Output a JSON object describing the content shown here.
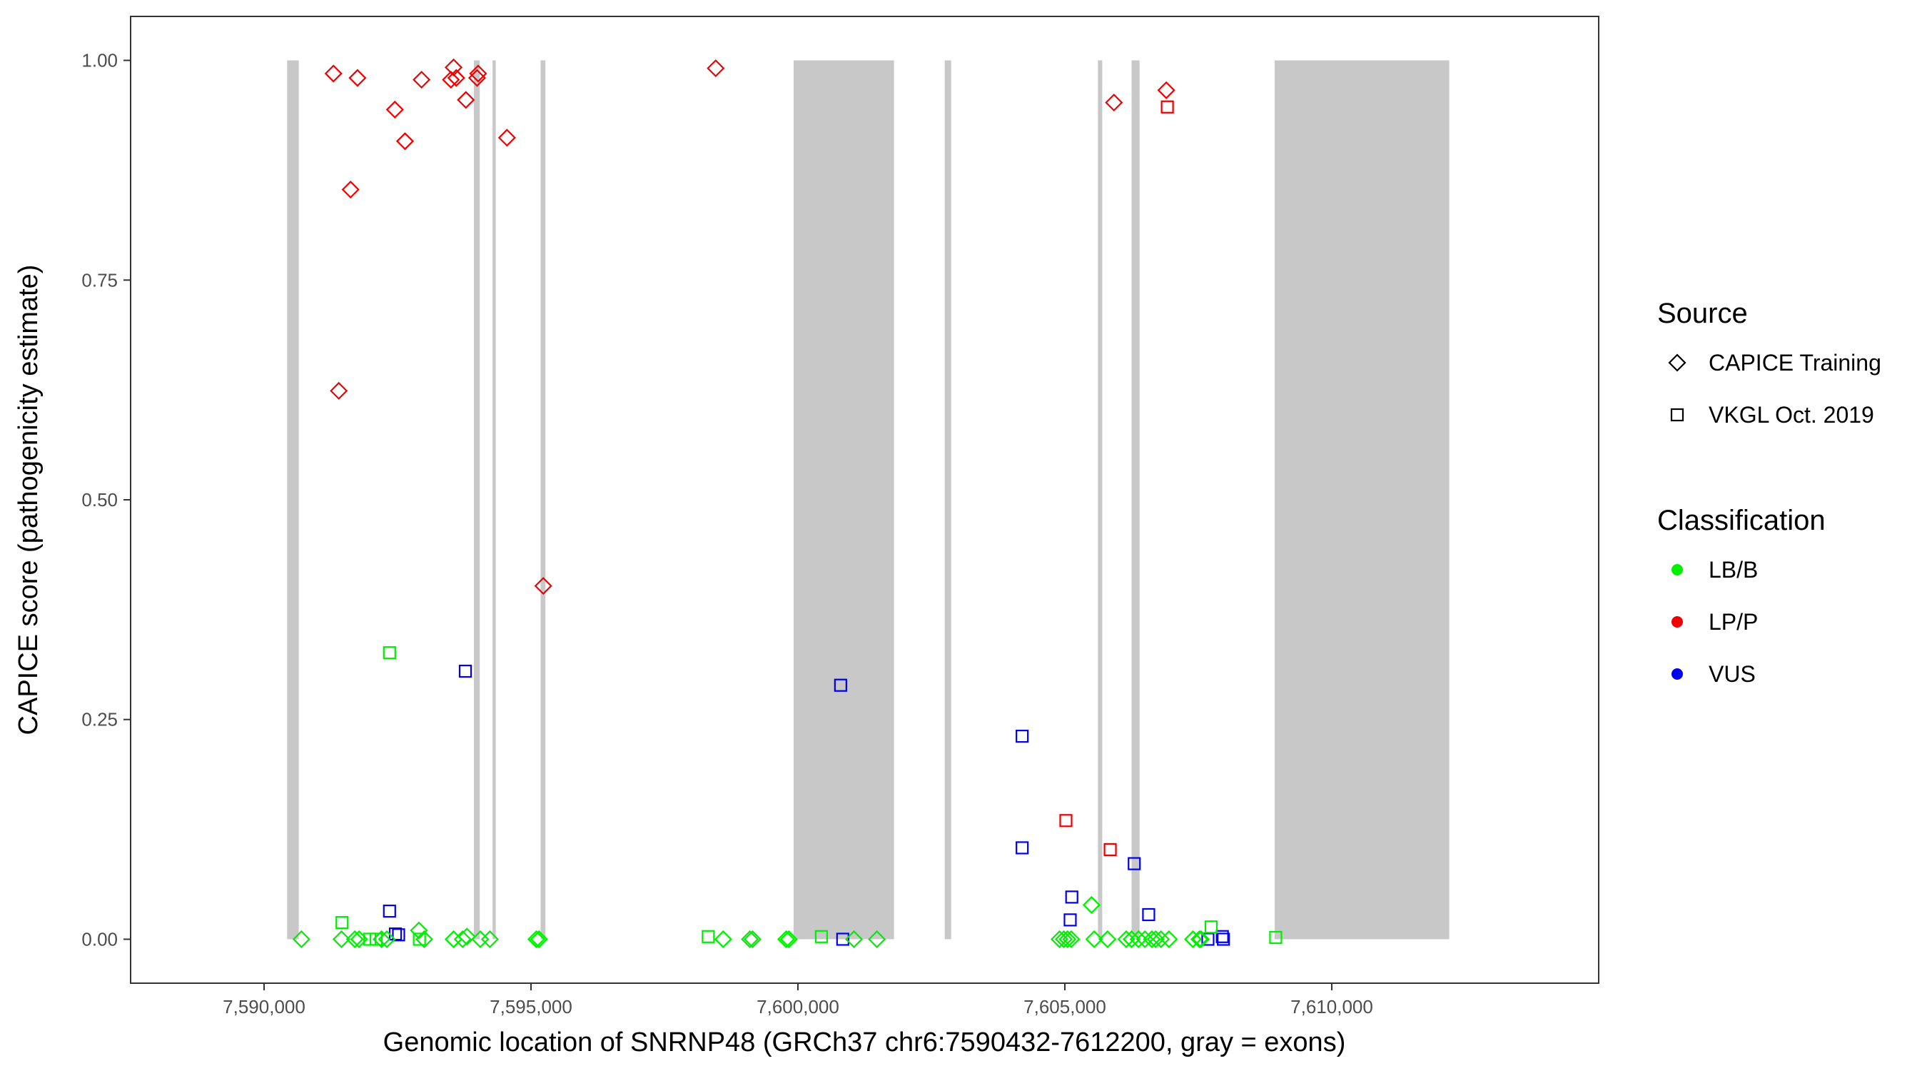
{
  "chart_data": {
    "type": "scatter",
    "title": "",
    "xlabel": "Genomic location of SNRNP48 (GRCh37 chr6:7590432-7612200, gray = exons)",
    "ylabel": "CAPICE score (pathogenicity estimate)",
    "xlim": [
      7587500,
      7615000
    ],
    "ylim": [
      -0.05,
      1.05
    ],
    "x_ticks": [
      7590000,
      7595000,
      7600000,
      7605000,
      7610000
    ],
    "x_tick_labels": [
      "7,590,000",
      "7,595,000",
      "7,600,000",
      "7,605,000",
      "7,610,000"
    ],
    "y_ticks": [
      0,
      0.25,
      0.5,
      0.75,
      1.0
    ],
    "y_tick_labels": [
      "0.00",
      "0.25",
      "0.50",
      "0.75",
      "1.00"
    ],
    "grid": false,
    "legend_position": "right",
    "exons": [
      [
        7590432,
        7590650
      ],
      [
        7593930,
        7594040
      ],
      [
        7594280,
        7594340
      ],
      [
        7595180,
        7595270
      ],
      [
        7599920,
        7601800
      ],
      [
        7602750,
        7602870
      ],
      [
        7605620,
        7605700
      ],
      [
        7606250,
        7606400
      ],
      [
        7608930,
        7612200
      ]
    ],
    "exon_color": "#c8c8c8",
    "legend": {
      "source_title": "Source",
      "source_items": [
        {
          "label": "CAPICE Training",
          "shape": "diamond"
        },
        {
          "label": "VKGL Oct. 2019",
          "shape": "square"
        }
      ],
      "class_title": "Classification",
      "class_items": [
        {
          "label": "LB/B",
          "color": "#00ee00"
        },
        {
          "label": "LP/P",
          "color": "#ee0000"
        },
        {
          "label": "VUS",
          "color": "#0000ee"
        }
      ]
    },
    "series": [
      {
        "source": "CAPICE Training",
        "classification": "LP/P",
        "points": [
          [
            7591300,
            0.985
          ],
          [
            7591750,
            0.98
          ],
          [
            7591620,
            0.853
          ],
          [
            7591400,
            0.624
          ],
          [
            7592450,
            0.944
          ],
          [
            7592640,
            0.908
          ],
          [
            7592950,
            0.978
          ],
          [
            7593550,
            0.992
          ],
          [
            7593500,
            0.978
          ],
          [
            7593600,
            0.98
          ],
          [
            7593780,
            0.955
          ],
          [
            7593990,
            0.98
          ],
          [
            7594010,
            0.985
          ],
          [
            7594550,
            0.912
          ],
          [
            7595230,
            0.402
          ],
          [
            7598460,
            0.991
          ],
          [
            7605920,
            0.952
          ],
          [
            7606900,
            0.966
          ]
        ]
      },
      {
        "source": "VKGL Oct. 2019",
        "classification": "LP/P",
        "points": [
          [
            7606920,
            0.947
          ],
          [
            7605020,
            0.135
          ],
          [
            7605850,
            0.102
          ]
        ]
      },
      {
        "source": "VKGL Oct. 2019",
        "classification": "VUS",
        "points": [
          [
            7593770,
            0.305
          ],
          [
            7600800,
            0.289
          ],
          [
            7604200,
            0.231
          ],
          [
            7604200,
            0.104
          ],
          [
            7606300,
            0.086
          ],
          [
            7605130,
            0.048
          ],
          [
            7606570,
            0.028
          ],
          [
            7605100,
            0.022
          ],
          [
            7592350,
            0.032
          ],
          [
            7592520,
            0.005
          ],
          [
            7592460,
            0.006
          ],
          [
            7600840,
            0.0
          ],
          [
            7607680,
            0.0
          ],
          [
            7607950,
            0.003
          ],
          [
            7607970,
            0.0
          ]
        ]
      },
      {
        "source": "VKGL Oct. 2019",
        "classification": "LB/B",
        "points": [
          [
            7592350,
            0.326
          ],
          [
            7591460,
            0.019
          ],
          [
            7592910,
            0.0
          ],
          [
            7607740,
            0.014
          ],
          [
            7598320,
            0.003
          ],
          [
            7600440,
            0.003
          ],
          [
            7608950,
            0.002
          ],
          [
            7592100,
            0.0
          ],
          [
            7591980,
            0.0
          ]
        ]
      },
      {
        "source": "CAPICE Training",
        "classification": "LB/B",
        "points": [
          [
            7590700,
            0.0
          ],
          [
            7591450,
            0.0
          ],
          [
            7591700,
            0.0
          ],
          [
            7591780,
            0.0
          ],
          [
            7592200,
            0.0
          ],
          [
            7592300,
            0.0
          ],
          [
            7592900,
            0.01
          ],
          [
            7593000,
            0.0
          ],
          [
            7593550,
            0.0
          ],
          [
            7593720,
            0.0
          ],
          [
            7593800,
            0.003
          ],
          [
            7594050,
            0.0
          ],
          [
            7594230,
            0.0
          ],
          [
            7595100,
            0.0
          ],
          [
            7595150,
            0.0
          ],
          [
            7598600,
            0.0
          ],
          [
            7599100,
            0.0
          ],
          [
            7599150,
            0.0
          ],
          [
            7599780,
            0.0
          ],
          [
            7599830,
            0.0
          ],
          [
            7601050,
            0.0
          ],
          [
            7601480,
            0.0
          ],
          [
            7604900,
            0.0
          ],
          [
            7604980,
            0.0
          ],
          [
            7605050,
            0.0
          ],
          [
            7605120,
            0.0
          ],
          [
            7605550,
            0.0
          ],
          [
            7605800,
            0.0
          ],
          [
            7605500,
            0.039
          ],
          [
            7606150,
            0.0
          ],
          [
            7606250,
            0.0
          ],
          [
            7606380,
            0.0
          ],
          [
            7606500,
            0.0
          ],
          [
            7606630,
            0.0
          ],
          [
            7606700,
            0.0
          ],
          [
            7606800,
            0.0
          ],
          [
            7606950,
            0.0
          ],
          [
            7607400,
            0.0
          ],
          [
            7607520,
            0.0
          ],
          [
            7607550,
            0.0
          ]
        ]
      }
    ]
  }
}
